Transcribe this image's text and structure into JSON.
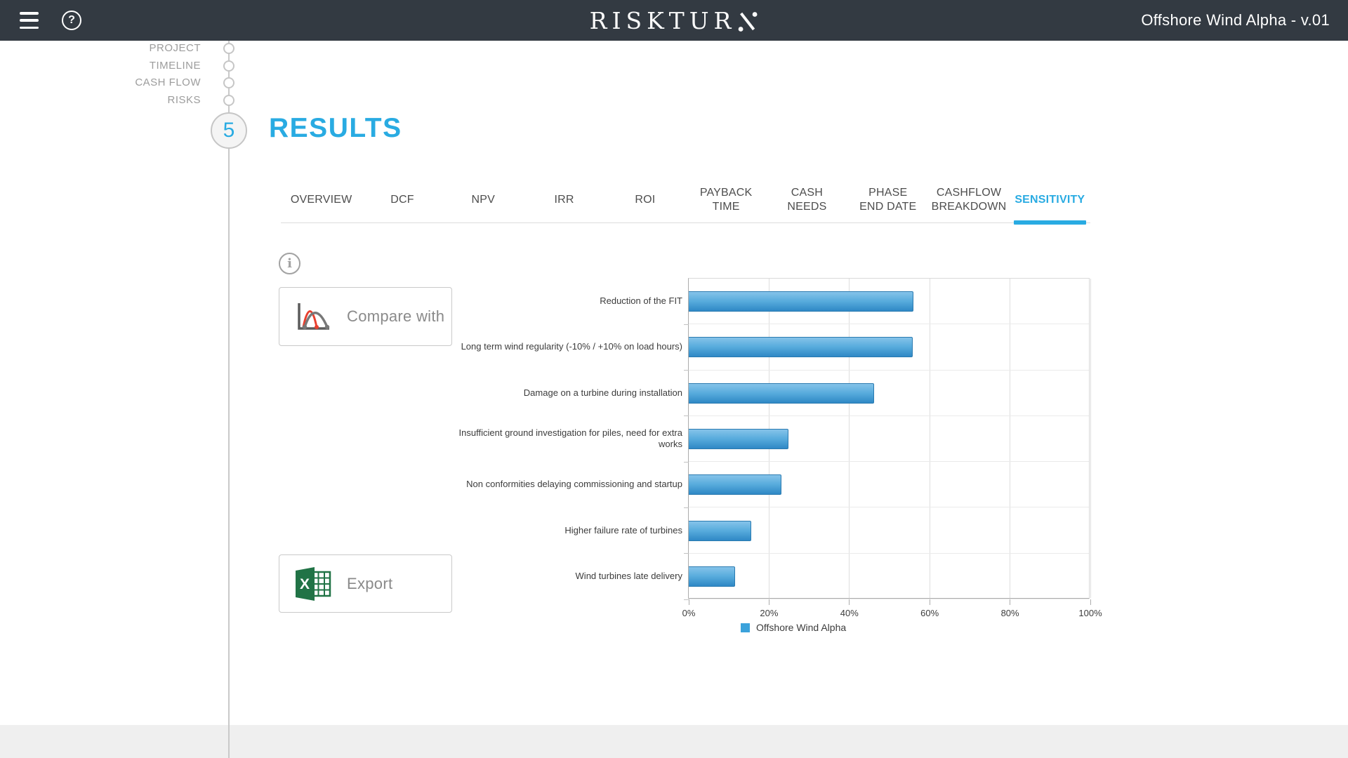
{
  "header": {
    "logo_full_text": "RISKTURN",
    "logo_display_main": "RISKTUR",
    "project_title": "Offshore Wind Alpha - v.01"
  },
  "stepper": {
    "steps": [
      {
        "label": "PROJECT"
      },
      {
        "label": "TIMELINE"
      },
      {
        "label": "CASH FLOW"
      },
      {
        "label": "RISKS"
      }
    ],
    "current_step_number": "5",
    "current_step_label": "RESULTS"
  },
  "tabs": {
    "items": [
      {
        "label": "OVERVIEW",
        "active": false
      },
      {
        "label": "DCF",
        "active": false
      },
      {
        "label": "NPV",
        "active": false
      },
      {
        "label": "IRR",
        "active": false
      },
      {
        "label": "ROI",
        "active": false
      },
      {
        "label": "PAYBACK\nTIME",
        "active": false
      },
      {
        "label": "CASH\nNEEDS",
        "active": false
      },
      {
        "label": "PHASE\nEND DATE",
        "active": false
      },
      {
        "label": "CASHFLOW\nBREAKDOWN",
        "active": false
      },
      {
        "label": "SENSITIVITY",
        "active": true
      }
    ]
  },
  "actions": {
    "compare_label": "Compare with",
    "export_label": "Export"
  },
  "chart_data": {
    "type": "bar",
    "orientation": "horizontal",
    "title": "",
    "xlabel": "",
    "ylabel": "",
    "categories": [
      "Reduction of the FIT",
      "Long term wind regularity (-10% / +10% on load hours)",
      "Damage on a turbine during installation",
      "Insufficient ground investigation for piles, need for extra works",
      "Non conformities delaying commissioning and startup",
      "Higher failure rate of turbines",
      "Wind turbines late delivery"
    ],
    "values": [
      56,
      55.7,
      46.2,
      24.8,
      23,
      15.6,
      11.6
    ],
    "value_unit": "%",
    "xlim": [
      0,
      100
    ],
    "x_ticks": [
      "0%",
      "20%",
      "40%",
      "60%",
      "80%",
      "100%"
    ],
    "grid": true,
    "legend_position": "bottom",
    "legend": [
      {
        "label": "Offshore Wind Alpha",
        "color": "#3BA2DB"
      }
    ]
  },
  "colors": {
    "accent": "#29ABE2",
    "header_bg": "#333A42",
    "footer_bg": "#EFEFEF",
    "bar_gradient_top": "#85C3EA",
    "bar_gradient_bottom": "#2F88C5",
    "bar_border": "#2A7AB0",
    "step_text": "#9C9C9C",
    "tab_text": "#4D4D4D"
  }
}
